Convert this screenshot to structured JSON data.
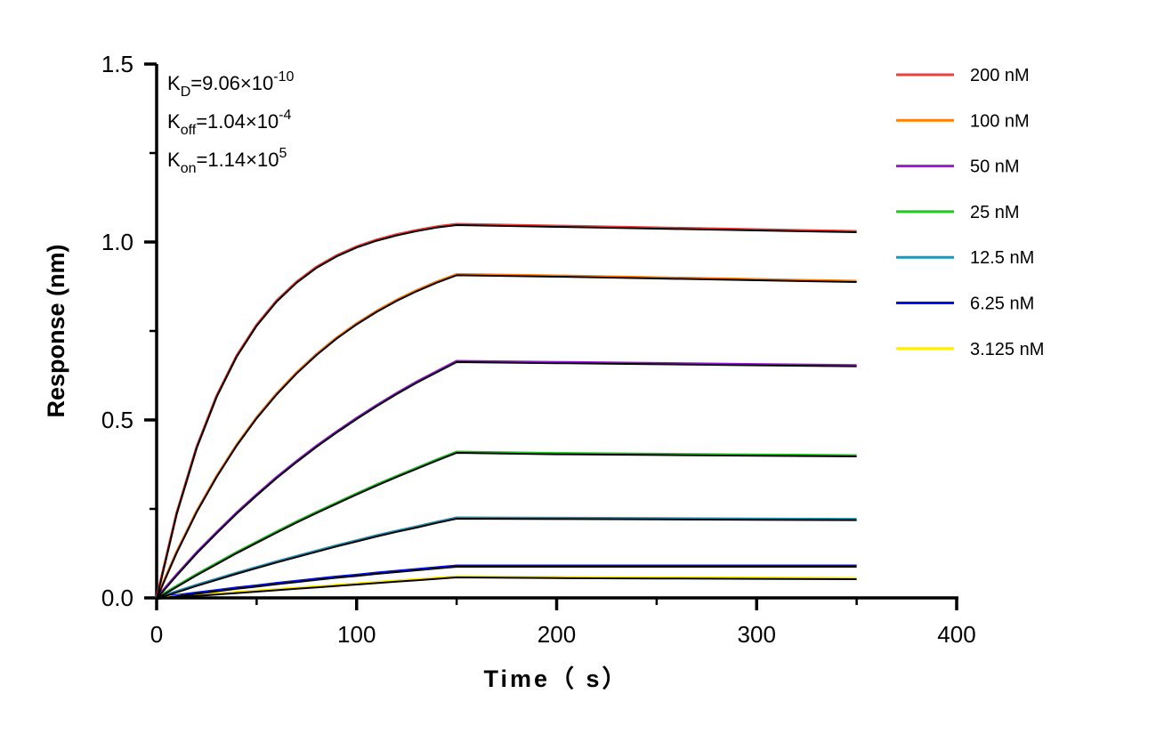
{
  "chart_data": {
    "type": "line",
    "xlabel": "Time（ s）",
    "ylabel": "Response (nm)",
    "xlim": [
      0,
      400
    ],
    "ylim": [
      0,
      1.5
    ],
    "xticks": [
      0,
      100,
      200,
      300,
      400
    ],
    "yticks": [
      "0.0",
      "0.5",
      "1.0",
      "1.5"
    ],
    "grid": false,
    "legend_position": "right",
    "annotations": [
      {
        "main": "K",
        "sub": "D",
        "rest": "=9.06×10",
        "sup": "-10"
      },
      {
        "main": "K",
        "sub": "off",
        "rest": "=1.04×10",
        "sup": "-4"
      },
      {
        "main": "K",
        "sub": "on",
        "rest": "=1.14×10",
        "sup": "5"
      }
    ],
    "fit_color": "#000000",
    "x": [
      0,
      10,
      20,
      30,
      40,
      50,
      60,
      70,
      80,
      90,
      100,
      110,
      120,
      130,
      140,
      150,
      200,
      250,
      300,
      350
    ],
    "series": [
      {
        "name": "200 nM",
        "color": "#f0403c",
        "values": [
          0,
          0.238,
          0.423,
          0.567,
          0.68,
          0.767,
          0.835,
          0.888,
          0.93,
          0.962,
          0.987,
          1.006,
          1.021,
          1.033,
          1.043,
          1.05,
          1.045,
          1.04,
          1.035,
          1.03
        ]
      },
      {
        "name": "100 nM",
        "color": "#ff8000",
        "values": [
          0,
          0.129,
          0.243,
          0.342,
          0.43,
          0.507,
          0.574,
          0.633,
          0.685,
          0.731,
          0.771,
          0.806,
          0.837,
          0.864,
          0.888,
          0.909,
          0.905,
          0.9,
          0.895,
          0.89
        ]
      },
      {
        "name": "50 nM",
        "color": "#9b19d6",
        "values": [
          0,
          0.065,
          0.127,
          0.184,
          0.239,
          0.29,
          0.339,
          0.384,
          0.427,
          0.467,
          0.505,
          0.541,
          0.575,
          0.607,
          0.636,
          0.665,
          0.662,
          0.659,
          0.656,
          0.653
        ]
      },
      {
        "name": "25 nM",
        "color": "#1ec81e",
        "values": [
          0,
          0.033,
          0.066,
          0.097,
          0.128,
          0.157,
          0.186,
          0.214,
          0.241,
          0.267,
          0.293,
          0.318,
          0.342,
          0.365,
          0.388,
          0.41,
          0.406,
          0.404,
          0.402,
          0.4
        ]
      },
      {
        "name": "12.5 nM",
        "color": "#2096b4",
        "values": [
          0,
          0.018,
          0.036,
          0.053,
          0.07,
          0.086,
          0.102,
          0.117,
          0.132,
          0.147,
          0.161,
          0.175,
          0.188,
          0.2,
          0.213,
          0.225,
          0.224,
          0.223,
          0.222,
          0.221
        ]
      },
      {
        "name": "6.25 nM",
        "color": "#0010e6",
        "values": [
          0,
          0.007,
          0.014,
          0.021,
          0.028,
          0.034,
          0.041,
          0.047,
          0.053,
          0.059,
          0.064,
          0.07,
          0.075,
          0.08,
          0.085,
          0.09,
          0.09,
          0.09,
          0.09,
          0.09
        ]
      },
      {
        "name": "3.125 nM",
        "color": "#ffee00",
        "values": [
          0,
          0.004,
          0.008,
          0.012,
          0.016,
          0.02,
          0.024,
          0.028,
          0.032,
          0.036,
          0.04,
          0.044,
          0.048,
          0.052,
          0.056,
          0.06,
          0.058,
          0.057,
          0.056,
          0.055
        ]
      }
    ]
  }
}
